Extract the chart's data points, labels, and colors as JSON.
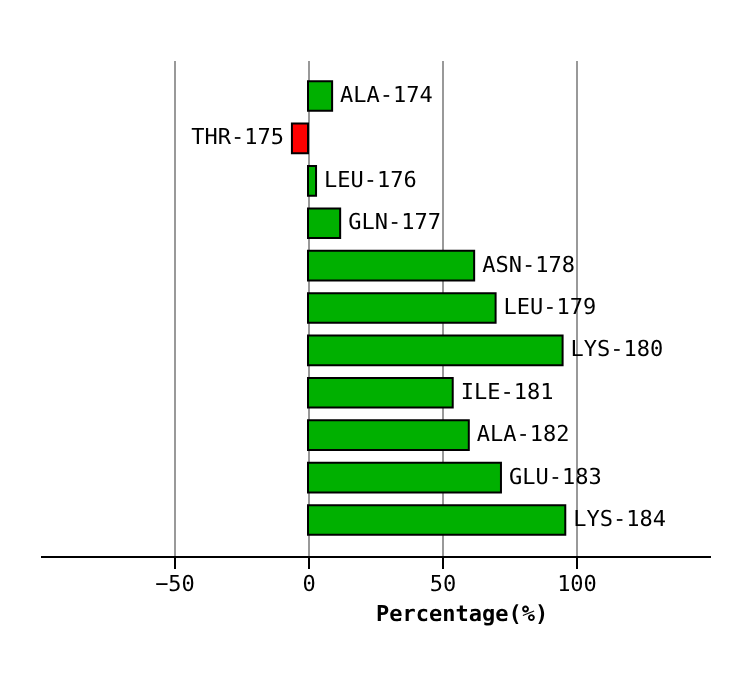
{
  "chart_data": {
    "type": "bar",
    "orientation": "horizontal",
    "xlabel": "Percentage(%)",
    "categories": [
      "ALA-174",
      "THR-175",
      "LEU-176",
      "GLN-177",
      "ASN-178",
      "LEU-179",
      "LYS-180",
      "ILE-181",
      "ALA-182",
      "GLU-183",
      "LYS-184"
    ],
    "values": [
      9,
      -6,
      3,
      12,
      62,
      70,
      95,
      54,
      60,
      72,
      96
    ],
    "colors": [
      "#00b000",
      "#ff0000",
      "#00b000",
      "#00b000",
      "#00b000",
      "#00b000",
      "#00b000",
      "#00b000",
      "#00b000",
      "#00b000",
      "#00b000"
    ],
    "xlim": [
      -100,
      150
    ],
    "xticks": [
      -50,
      0,
      50,
      100
    ],
    "grid": "x",
    "tick_labels": "x"
  }
}
